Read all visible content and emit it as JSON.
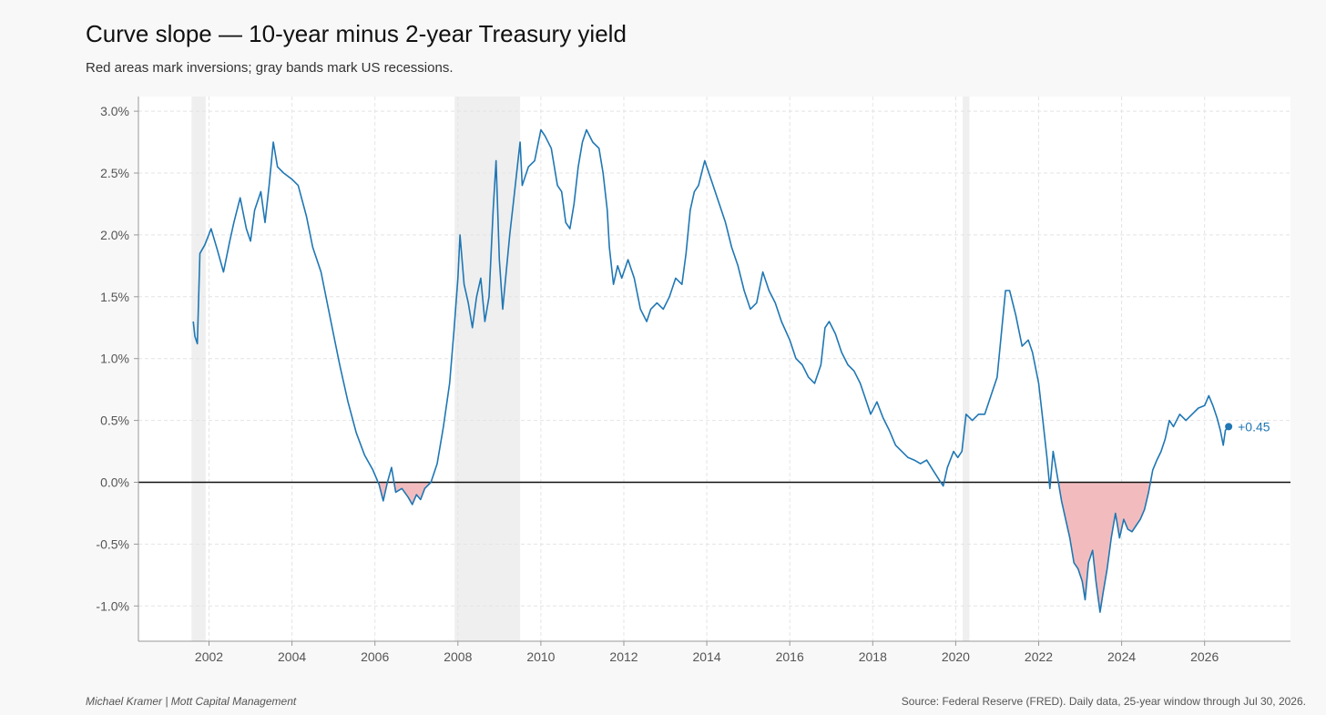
{
  "header": {
    "title": "Curve slope — 10-year minus 2-year Treasury yield",
    "subtitle": "Red areas mark inversions; gray bands mark US recessions."
  },
  "footer": {
    "author": "Michael Kramer  |  Mott Capital Management",
    "source": "Source: Federal Reserve (FRED). Daily data, 25-year window through Jul 30, 2026."
  },
  "colors": {
    "line": "#1f77b4",
    "inversion_fill": "#f2bcbe",
    "recession_band": "#efefef",
    "zero_line": "#111111",
    "grid": "#e4e4e4"
  },
  "chart_data": {
    "type": "line",
    "xlim": [
      2001.3,
      2027.7
    ],
    "ylim": [
      -1.28,
      3.0
    ],
    "x_ticks": [
      2002,
      2004,
      2006,
      2008,
      2010,
      2012,
      2014,
      2016,
      2018,
      2020,
      2022,
      2024,
      2026
    ],
    "y_ticks": [
      {
        "value": 3.0,
        "label": "3.0%"
      },
      {
        "value": 2.5,
        "label": "2.5%"
      },
      {
        "value": 2.0,
        "label": "2.0%"
      },
      {
        "value": 1.5,
        "label": "1.5%"
      },
      {
        "value": 1.0,
        "label": "1.0%"
      },
      {
        "value": 0.5,
        "label": "0.5%"
      },
      {
        "value": 0.0,
        "label": "0.0%"
      },
      {
        "value": -0.5,
        "label": "-0.5%"
      },
      {
        "value": -1.0,
        "label": "-1.0%"
      }
    ],
    "grid": true,
    "recessions": [
      [
        2001.58,
        2001.92
      ],
      [
        2007.92,
        2009.5
      ],
      [
        2020.17,
        2020.33
      ]
    ],
    "end_label": "+0.45",
    "series": [
      {
        "values": [
          [
            2001.62,
            1.3
          ],
          [
            2001.66,
            1.18
          ],
          [
            2001.72,
            1.12
          ],
          [
            2001.78,
            1.85
          ],
          [
            2001.9,
            1.92
          ],
          [
            2002.05,
            2.05
          ],
          [
            2002.2,
            1.88
          ],
          [
            2002.35,
            1.7
          ],
          [
            2002.5,
            1.95
          ],
          [
            2002.6,
            2.1
          ],
          [
            2002.75,
            2.3
          ],
          [
            2002.9,
            2.05
          ],
          [
            2003.0,
            1.95
          ],
          [
            2003.1,
            2.2
          ],
          [
            2003.25,
            2.35
          ],
          [
            2003.35,
            2.1
          ],
          [
            2003.45,
            2.4
          ],
          [
            2003.55,
            2.75
          ],
          [
            2003.65,
            2.55
          ],
          [
            2003.8,
            2.5
          ],
          [
            2004.0,
            2.45
          ],
          [
            2004.15,
            2.4
          ],
          [
            2004.35,
            2.15
          ],
          [
            2004.5,
            1.9
          ],
          [
            2004.7,
            1.7
          ],
          [
            2004.85,
            1.45
          ],
          [
            2005.0,
            1.2
          ],
          [
            2005.15,
            0.95
          ],
          [
            2005.35,
            0.65
          ],
          [
            2005.55,
            0.4
          ],
          [
            2005.75,
            0.22
          ],
          [
            2005.95,
            0.1
          ],
          [
            2006.1,
            -0.02
          ],
          [
            2006.2,
            -0.15
          ],
          [
            2006.3,
            0.0
          ],
          [
            2006.4,
            0.12
          ],
          [
            2006.5,
            -0.08
          ],
          [
            2006.65,
            -0.05
          ],
          [
            2006.8,
            -0.12
          ],
          [
            2006.9,
            -0.18
          ],
          [
            2007.0,
            -0.1
          ],
          [
            2007.1,
            -0.14
          ],
          [
            2007.2,
            -0.05
          ],
          [
            2007.35,
            0.0
          ],
          [
            2007.5,
            0.15
          ],
          [
            2007.65,
            0.45
          ],
          [
            2007.8,
            0.8
          ],
          [
            2007.9,
            1.2
          ],
          [
            2008.0,
            1.65
          ],
          [
            2008.05,
            2.0
          ],
          [
            2008.15,
            1.6
          ],
          [
            2008.25,
            1.45
          ],
          [
            2008.35,
            1.25
          ],
          [
            2008.45,
            1.5
          ],
          [
            2008.55,
            1.65
          ],
          [
            2008.65,
            1.3
          ],
          [
            2008.75,
            1.5
          ],
          [
            2008.85,
            2.2
          ],
          [
            2008.92,
            2.6
          ],
          [
            2009.0,
            1.8
          ],
          [
            2009.08,
            1.4
          ],
          [
            2009.15,
            1.65
          ],
          [
            2009.25,
            2.0
          ],
          [
            2009.35,
            2.3
          ],
          [
            2009.45,
            2.6
          ],
          [
            2009.5,
            2.75
          ],
          [
            2009.55,
            2.4
          ],
          [
            2009.7,
            2.55
          ],
          [
            2009.85,
            2.6
          ],
          [
            2010.0,
            2.85
          ],
          [
            2010.1,
            2.8
          ],
          [
            2010.25,
            2.7
          ],
          [
            2010.4,
            2.4
          ],
          [
            2010.5,
            2.35
          ],
          [
            2010.6,
            2.1
          ],
          [
            2010.7,
            2.05
          ],
          [
            2010.8,
            2.25
          ],
          [
            2010.9,
            2.55
          ],
          [
            2011.0,
            2.75
          ],
          [
            2011.1,
            2.85
          ],
          [
            2011.25,
            2.75
          ],
          [
            2011.4,
            2.7
          ],
          [
            2011.5,
            2.5
          ],
          [
            2011.6,
            2.2
          ],
          [
            2011.65,
            1.9
          ],
          [
            2011.75,
            1.6
          ],
          [
            2011.85,
            1.75
          ],
          [
            2011.95,
            1.65
          ],
          [
            2012.1,
            1.8
          ],
          [
            2012.25,
            1.65
          ],
          [
            2012.4,
            1.4
          ],
          [
            2012.55,
            1.3
          ],
          [
            2012.65,
            1.4
          ],
          [
            2012.8,
            1.45
          ],
          [
            2012.95,
            1.4
          ],
          [
            2013.1,
            1.5
          ],
          [
            2013.25,
            1.65
          ],
          [
            2013.4,
            1.6
          ],
          [
            2013.5,
            1.85
          ],
          [
            2013.6,
            2.2
          ],
          [
            2013.7,
            2.35
          ],
          [
            2013.8,
            2.4
          ],
          [
            2013.95,
            2.6
          ],
          [
            2014.1,
            2.45
          ],
          [
            2014.3,
            2.25
          ],
          [
            2014.45,
            2.1
          ],
          [
            2014.6,
            1.9
          ],
          [
            2014.75,
            1.75
          ],
          [
            2014.9,
            1.55
          ],
          [
            2015.05,
            1.4
          ],
          [
            2015.2,
            1.45
          ],
          [
            2015.35,
            1.7
          ],
          [
            2015.5,
            1.55
          ],
          [
            2015.65,
            1.45
          ],
          [
            2015.8,
            1.3
          ],
          [
            2016.0,
            1.15
          ],
          [
            2016.15,
            1.0
          ],
          [
            2016.3,
            0.95
          ],
          [
            2016.45,
            0.85
          ],
          [
            2016.6,
            0.8
          ],
          [
            2016.75,
            0.95
          ],
          [
            2016.85,
            1.25
          ],
          [
            2016.95,
            1.3
          ],
          [
            2017.1,
            1.2
          ],
          [
            2017.25,
            1.05
          ],
          [
            2017.4,
            0.95
          ],
          [
            2017.55,
            0.9
          ],
          [
            2017.7,
            0.8
          ],
          [
            2017.85,
            0.65
          ],
          [
            2017.95,
            0.55
          ],
          [
            2018.1,
            0.65
          ],
          [
            2018.25,
            0.52
          ],
          [
            2018.4,
            0.42
          ],
          [
            2018.55,
            0.3
          ],
          [
            2018.7,
            0.25
          ],
          [
            2018.85,
            0.2
          ],
          [
            2019.0,
            0.18
          ],
          [
            2019.15,
            0.15
          ],
          [
            2019.3,
            0.18
          ],
          [
            2019.45,
            0.1
          ],
          [
            2019.6,
            0.02
          ],
          [
            2019.7,
            -0.03
          ],
          [
            2019.8,
            0.12
          ],
          [
            2019.95,
            0.25
          ],
          [
            2020.05,
            0.2
          ],
          [
            2020.15,
            0.25
          ],
          [
            2020.25,
            0.55
          ],
          [
            2020.4,
            0.5
          ],
          [
            2020.55,
            0.55
          ],
          [
            2020.7,
            0.55
          ],
          [
            2020.85,
            0.7
          ],
          [
            2021.0,
            0.85
          ],
          [
            2021.1,
            1.2
          ],
          [
            2021.2,
            1.55
          ],
          [
            2021.3,
            1.55
          ],
          [
            2021.45,
            1.35
          ],
          [
            2021.6,
            1.1
          ],
          [
            2021.75,
            1.15
          ],
          [
            2021.85,
            1.05
          ],
          [
            2022.0,
            0.8
          ],
          [
            2022.1,
            0.5
          ],
          [
            2022.2,
            0.2
          ],
          [
            2022.27,
            -0.05
          ],
          [
            2022.35,
            0.25
          ],
          [
            2022.45,
            0.05
          ],
          [
            2022.55,
            -0.15
          ],
          [
            2022.65,
            -0.3
          ],
          [
            2022.75,
            -0.45
          ],
          [
            2022.85,
            -0.65
          ],
          [
            2022.95,
            -0.7
          ],
          [
            2023.05,
            -0.8
          ],
          [
            2023.12,
            -0.95
          ],
          [
            2023.2,
            -0.65
          ],
          [
            2023.3,
            -0.55
          ],
          [
            2023.38,
            -0.8
          ],
          [
            2023.48,
            -1.05
          ],
          [
            2023.55,
            -0.9
          ],
          [
            2023.65,
            -0.7
          ],
          [
            2023.75,
            -0.45
          ],
          [
            2023.85,
            -0.25
          ],
          [
            2023.95,
            -0.45
          ],
          [
            2024.05,
            -0.3
          ],
          [
            2024.15,
            -0.38
          ],
          [
            2024.25,
            -0.4
          ],
          [
            2024.35,
            -0.35
          ],
          [
            2024.45,
            -0.3
          ],
          [
            2024.55,
            -0.22
          ],
          [
            2024.65,
            -0.08
          ],
          [
            2024.75,
            0.1
          ],
          [
            2024.85,
            0.18
          ],
          [
            2024.95,
            0.25
          ],
          [
            2025.05,
            0.35
          ],
          [
            2025.15,
            0.5
          ],
          [
            2025.25,
            0.45
          ],
          [
            2025.4,
            0.55
          ],
          [
            2025.55,
            0.5
          ],
          [
            2025.7,
            0.55
          ],
          [
            2025.85,
            0.6
          ],
          [
            2026.0,
            0.62
          ],
          [
            2026.1,
            0.7
          ],
          [
            2026.2,
            0.62
          ],
          [
            2026.3,
            0.52
          ],
          [
            2026.38,
            0.42
          ],
          [
            2026.45,
            0.3
          ],
          [
            2026.5,
            0.42
          ],
          [
            2026.58,
            0.45
          ]
        ]
      }
    ]
  }
}
